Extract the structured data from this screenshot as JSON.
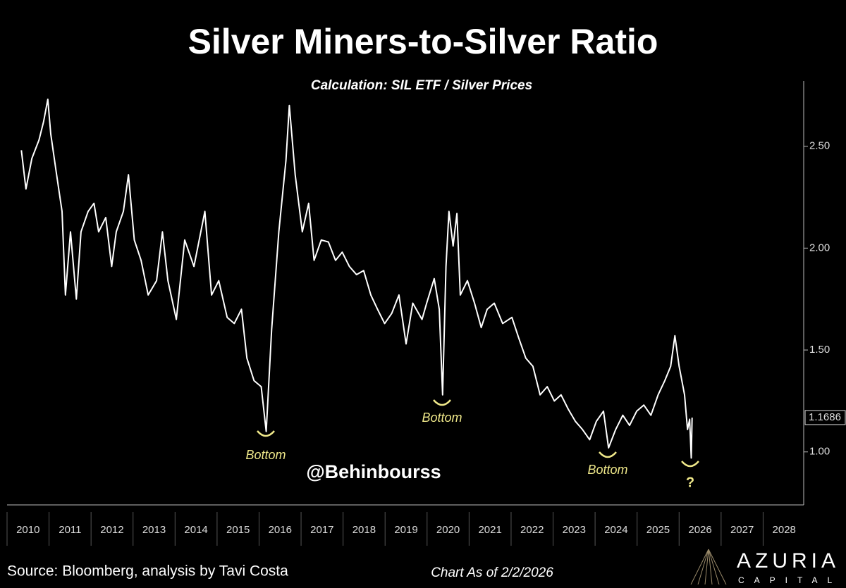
{
  "chart_data": {
    "type": "line",
    "title": "Silver Miners-to-Silver Ratio",
    "subtitle": "Calculation: SIL ETF / Silver Prices",
    "color": "#ffffff",
    "x": [
      2010.34,
      2010.45,
      2010.59,
      2010.76,
      2010.87,
      2010.97,
      2011.04,
      2011.18,
      2011.31,
      2011.39,
      2011.51,
      2011.65,
      2011.76,
      2011.93,
      2012.07,
      2012.18,
      2012.35,
      2012.49,
      2012.6,
      2012.77,
      2012.89,
      2013.03,
      2013.19,
      2013.36,
      2013.56,
      2013.7,
      2013.83,
      2014.03,
      2014.23,
      2014.45,
      2014.71,
      2014.87,
      2015.04,
      2015.24,
      2015.41,
      2015.58,
      2015.71,
      2015.88,
      2016.05,
      2016.17,
      2016.3,
      2016.47,
      2016.64,
      2016.72,
      2016.86,
      2017.03,
      2017.18,
      2017.31,
      2017.48,
      2017.65,
      2017.82,
      2017.98,
      2018.15,
      2018.32,
      2018.49,
      2018.66,
      2018.82,
      2018.99,
      2019.16,
      2019.33,
      2019.5,
      2019.66,
      2019.88,
      2019.99,
      2020.17,
      2020.29,
      2020.37,
      2020.45,
      2020.52,
      2020.62,
      2020.71,
      2020.79,
      2020.96,
      2021.13,
      2021.29,
      2021.43,
      2021.6,
      2021.8,
      2022.02,
      2022.18,
      2022.35,
      2022.52,
      2022.69,
      2022.86,
      2023.03,
      2023.19,
      2023.36,
      2023.53,
      2023.7,
      2023.87,
      2024.03,
      2024.2,
      2024.32,
      2024.49,
      2024.66,
      2024.82,
      2024.99,
      2025.16,
      2025.33,
      2025.5,
      2025.66,
      2025.8,
      2025.9,
      2026.0,
      2026.13,
      2026.2,
      2026.25,
      2026.29,
      2026.31
    ],
    "values": [
      2.48,
      2.29,
      2.44,
      2.53,
      2.62,
      2.73,
      2.56,
      2.36,
      2.18,
      1.77,
      2.08,
      1.75,
      2.08,
      2.18,
      2.22,
      2.08,
      2.15,
      1.91,
      2.08,
      2.18,
      2.36,
      2.04,
      1.94,
      1.77,
      1.84,
      2.08,
      1.84,
      1.65,
      2.04,
      1.91,
      2.18,
      1.77,
      1.84,
      1.66,
      1.63,
      1.7,
      1.46,
      1.35,
      1.32,
      1.1,
      1.6,
      2.08,
      2.43,
      2.7,
      2.36,
      2.08,
      2.22,
      1.94,
      2.04,
      2.03,
      1.94,
      1.98,
      1.91,
      1.87,
      1.89,
      1.77,
      1.7,
      1.63,
      1.68,
      1.77,
      1.53,
      1.73,
      1.65,
      1.73,
      1.85,
      1.7,
      1.28,
      1.91,
      2.18,
      2.01,
      2.17,
      1.77,
      1.84,
      1.73,
      1.61,
      1.7,
      1.73,
      1.63,
      1.66,
      1.56,
      1.46,
      1.42,
      1.28,
      1.32,
      1.25,
      1.28,
      1.21,
      1.15,
      1.11,
      1.06,
      1.15,
      1.2,
      1.02,
      1.11,
      1.18,
      1.13,
      1.2,
      1.23,
      1.18,
      1.28,
      1.35,
      1.42,
      1.57,
      1.42,
      1.28,
      1.11,
      1.16,
      0.97,
      1.1686
    ],
    "xlim": [
      2010,
      2029
    ],
    "xticks": [
      2010,
      2011,
      2012,
      2013,
      2014,
      2015,
      2016,
      2017,
      2018,
      2019,
      2020,
      2021,
      2022,
      2023,
      2024,
      2025,
      2026,
      2027,
      2028
    ],
    "ylim": [
      0.74,
      2.82
    ],
    "yticks": [
      {
        "value": 1,
        "label": "1.00"
      },
      {
        "value": 1.5,
        "label": "1.50"
      },
      {
        "value": 2,
        "label": "2.00"
      },
      {
        "value": 2.5,
        "label": "2.50"
      }
    ],
    "annotations": [
      "Bottom",
      "Bottom",
      "Bottom",
      "?"
    ],
    "watermark": "@Behinbourss",
    "source": "Source: Bloomberg, analysis by Tavi Costa",
    "as_of": "Chart As of 2/2/2026",
    "logo": {
      "name": "AZURIA",
      "tagline": "CAPITAL"
    }
  }
}
